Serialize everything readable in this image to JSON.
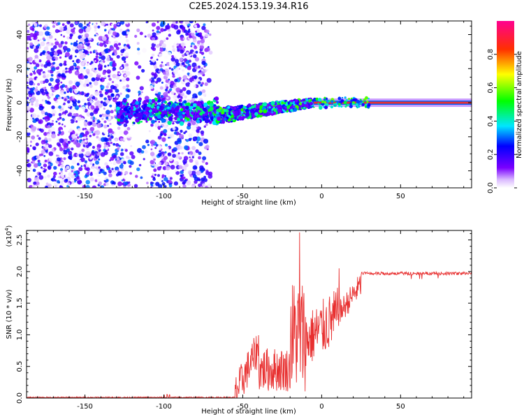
{
  "title": "C2E5.2024.153.19.34.R16",
  "top_panel": {
    "xlabel": "Height of straight line (km)",
    "ylabel": "Frequency (Hz)",
    "colorbar_label": "Normalized spectral amplitude",
    "x_ticks": [
      "-150",
      "-100",
      "-50",
      "0",
      "50"
    ],
    "y_ticks": [
      "40",
      "20",
      "0",
      "-20",
      "-40"
    ],
    "colorbar_ticks": [
      "0.0",
      "0.2",
      "0.4",
      "0.6",
      "0.8"
    ]
  },
  "bottom_panel": {
    "xlabel": "Height of straight line (km)",
    "ylabel": "SNR (10 * v/v)",
    "multiplier_base": "(x10",
    "multiplier_exp": "4",
    "multiplier_close": ")",
    "x_ticks": [
      "-150",
      "-100",
      "-50",
      "0",
      "50"
    ],
    "y_ticks": [
      "0.0",
      "0.5",
      "1.0",
      "1.5",
      "2.0",
      "2.5"
    ]
  },
  "colors": {
    "snr_line": "#e83030",
    "carrier": "#e83030",
    "axis": "#000000"
  },
  "chart_data": [
    {
      "type": "heatmap",
      "xlim": [
        -187,
        95
      ],
      "ylim": [
        -50,
        48
      ],
      "colormap": "rainbow (white-violet-blue-cyan-green-yellow-red-magenta)",
      "clim": [
        0,
        1
      ],
      "features": [
        {
          "name": "noise_field",
          "x_range": [
            -187,
            -68
          ],
          "freq_range": [
            -50,
            48
          ],
          "amplitude": 0.2
        },
        {
          "name": "noise_gap",
          "x_range": [
            -122,
            -108
          ],
          "freq_range": [
            -50,
            48
          ],
          "amplitude": 0.05
        },
        {
          "name": "carrier_band_noisy",
          "x_range": [
            -130,
            -65
          ],
          "freq_center": -5,
          "amplitude": 0.4
        },
        {
          "name": "carrier_drift",
          "x_range": [
            -68,
            -5
          ],
          "freq_start": -8,
          "freq_end": 0,
          "amplitude": 0.45
        },
        {
          "name": "carrier_clean",
          "x_range": [
            -5,
            95
          ],
          "freq_center": 0,
          "amplitude": 0.9
        }
      ]
    },
    {
      "type": "line",
      "xlim": [
        -187,
        95
      ],
      "ylim": [
        0,
        2.65
      ],
      "y_scale_factor": 10000,
      "segments": [
        {
          "x_range": [
            -187,
            -55
          ],
          "snr_level": 0.01,
          "jitter": 0.01
        },
        {
          "x_range": [
            -55,
            -40
          ],
          "snr_ramp": [
            0.05,
            0.8
          ],
          "jitter": 0.3
        },
        {
          "x_range": [
            -40,
            -20
          ],
          "snr_level": 0.45,
          "jitter": 0.35
        },
        {
          "x_range": [
            -20,
            -10
          ],
          "snr_level": 1.0,
          "jitter": 0.9
        },
        {
          "x_range": [
            -10,
            10
          ],
          "snr_ramp": [
            0.9,
            1.3
          ],
          "jitter": 0.45
        },
        {
          "x_range": [
            10,
            25
          ],
          "snr_ramp": [
            1.3,
            1.8
          ],
          "jitter": 0.2
        },
        {
          "x_range": [
            25,
            95
          ],
          "snr_level": 1.97,
          "jitter": 0.025
        }
      ],
      "peak": {
        "x": -14,
        "snr": 2.62
      }
    }
  ]
}
